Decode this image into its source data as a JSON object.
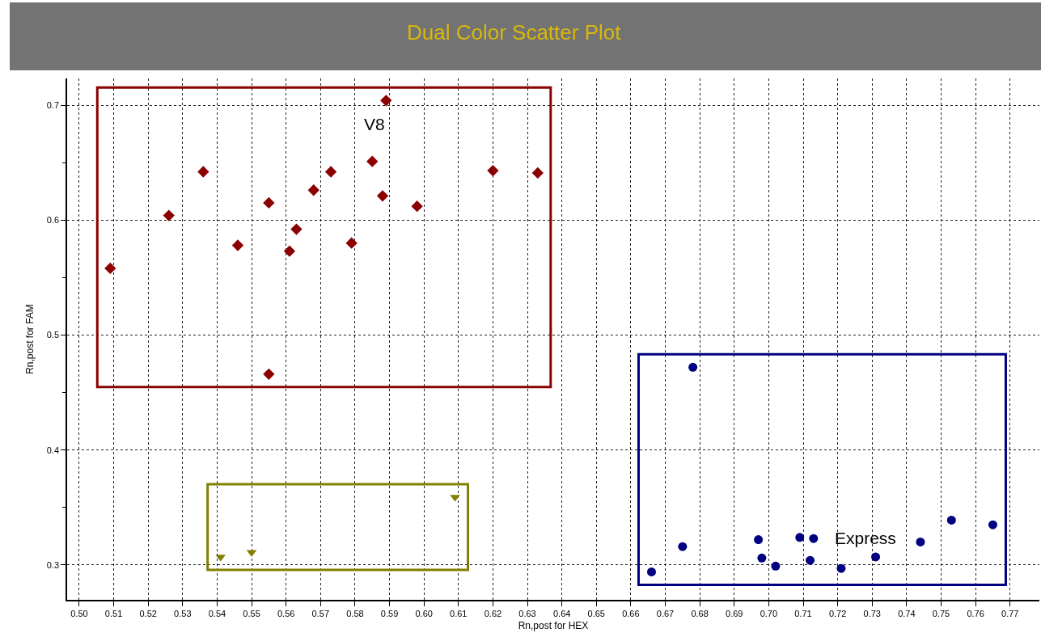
{
  "chart_data": {
    "type": "scatter",
    "title": "Dual Color Scatter Plot",
    "xlabel": "Rn,post for HEX",
    "ylabel": "Rn,post for FAM",
    "series": [
      {
        "color": "#8b0000",
        "marker": "diamond",
        "x": [
          0.509,
          0.526,
          0.536,
          0.546,
          0.555,
          0.555,
          0.561,
          0.563,
          0.568,
          0.573,
          0.579,
          0.585,
          0.588,
          0.589,
          0.598,
          0.62,
          0.633
        ],
        "values": [
          0.558,
          0.604,
          0.642,
          0.578,
          0.615,
          0.466,
          0.573,
          0.592,
          0.626,
          0.642,
          0.58,
          0.651,
          0.621,
          0.704,
          0.612,
          0.643,
          0.641
        ]
      },
      {
        "color": "#808000",
        "marker": "triangle",
        "x": [
          0.541,
          0.55,
          0.609
        ],
        "values": [
          0.307,
          0.311,
          0.359
        ]
      },
      {
        "color": "#000080",
        "marker": "circle",
        "x": [
          0.666,
          0.675,
          0.678,
          0.697,
          0.698,
          0.702,
          0.709,
          0.712,
          0.713,
          0.721,
          0.731,
          0.744,
          0.753,
          0.765
        ],
        "values": [
          0.294,
          0.316,
          0.472,
          0.322,
          0.306,
          0.299,
          0.324,
          0.304,
          0.323,
          0.297,
          0.307,
          0.32,
          0.339,
          0.335
        ]
      }
    ],
    "annotations": [
      "V8",
      "Express"
    ],
    "xlim": [
      0.4965,
      0.7785
    ],
    "ylim": [
      0.2697,
      0.7232
    ],
    "xticks": [
      {
        "value": 0.5,
        "label": "0.50"
      },
      {
        "value": 0.51,
        "label": "0.51"
      },
      {
        "value": 0.52,
        "label": "0.52"
      },
      {
        "value": 0.53,
        "label": "0.53"
      },
      {
        "value": 0.54,
        "label": "0.54"
      },
      {
        "value": 0.55,
        "label": "0.55"
      },
      {
        "value": 0.56,
        "label": "0.56"
      },
      {
        "value": 0.57,
        "label": "0.57"
      },
      {
        "value": 0.58,
        "label": "0.58"
      },
      {
        "value": 0.59,
        "label": "0.59"
      },
      {
        "value": 0.6,
        "label": "0.60"
      },
      {
        "value": 0.61,
        "label": "0.61"
      },
      {
        "value": 0.62,
        "label": "0.62"
      },
      {
        "value": 0.63,
        "label": "0.63"
      },
      {
        "value": 0.64,
        "label": "0.64"
      },
      {
        "value": 0.65,
        "label": "0.65"
      },
      {
        "value": 0.66,
        "label": "0.66"
      },
      {
        "value": 0.67,
        "label": "0.67"
      },
      {
        "value": 0.68,
        "label": "0.68"
      },
      {
        "value": 0.69,
        "label": "0.69"
      },
      {
        "value": 0.7,
        "label": "0.70"
      },
      {
        "value": 0.71,
        "label": "0.71"
      },
      {
        "value": 0.72,
        "label": "0.72"
      },
      {
        "value": 0.73,
        "label": "0.73"
      },
      {
        "value": 0.74,
        "label": "0.74"
      },
      {
        "value": 0.75,
        "label": "0.75"
      },
      {
        "value": 0.76,
        "label": "0.76"
      },
      {
        "value": 0.77,
        "label": "0.77"
      }
    ],
    "yticks": [
      0.3,
      {
        "value": 0.35,
        "label": null
      },
      0.4,
      {
        "value": 0.45,
        "label": null
      },
      0.5,
      {
        "value": 0.55,
        "label": null
      },
      0.6,
      {
        "value": 0.65,
        "label": null
      },
      0.7
    ],
    "grid": true
  }
}
